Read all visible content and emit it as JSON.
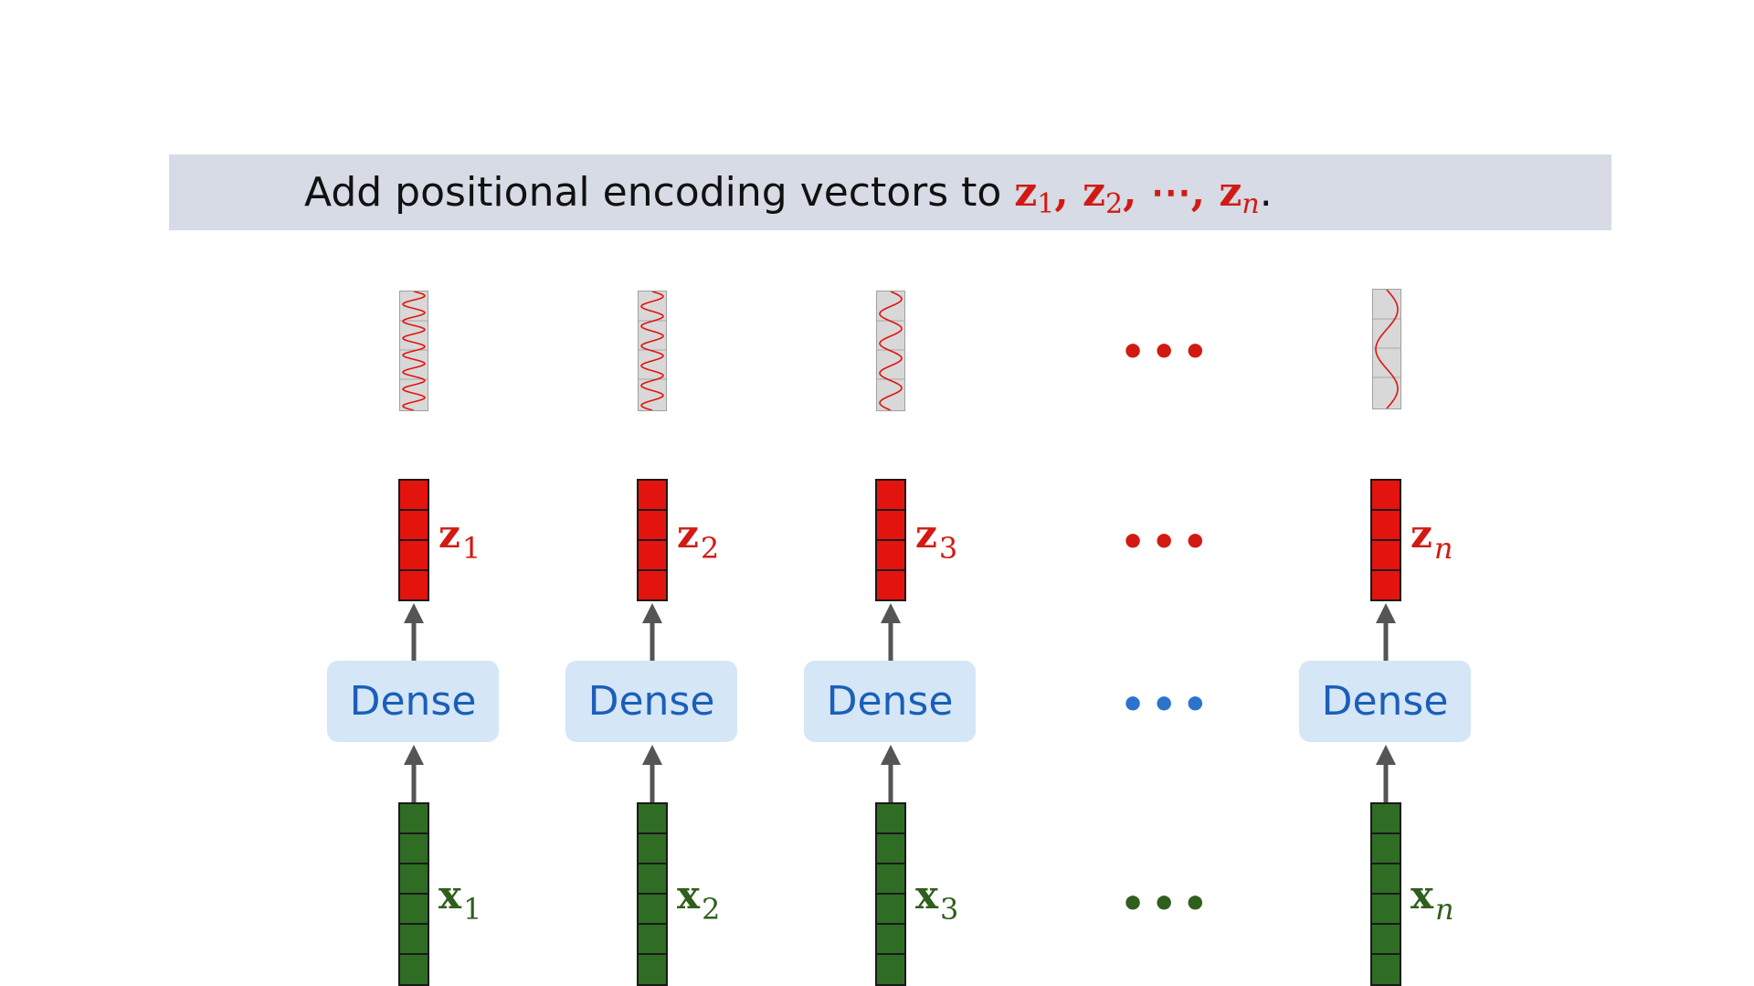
{
  "banner": {
    "text": "Add positional encoding vectors to ",
    "z_symbol": "z",
    "sub1": "1",
    "sub2": "2",
    "subn": "n",
    "ellipsis": "⋯",
    "sep": ", ",
    "period": "."
  },
  "columns": [
    {
      "z_label": "z",
      "z_sub": "1",
      "x_label": "x",
      "x_sub": "1",
      "dense_label": "Dense"
    },
    {
      "z_label": "z",
      "z_sub": "2",
      "x_label": "x",
      "x_sub": "2",
      "dense_label": "Dense"
    },
    {
      "z_label": "z",
      "z_sub": "3",
      "x_label": "x",
      "x_sub": "3",
      "dense_label": "Dense"
    },
    {
      "z_label": "z",
      "z_sub": "n",
      "x_label": "x",
      "x_sub": "n",
      "dense_label": "Dense"
    }
  ],
  "dots": "•••",
  "colors": {
    "z_vector": "#e3130d",
    "x_vector": "#2f6d24",
    "dense_bg": "#d5e6f7",
    "dense_text": "#1b5fb8",
    "banner_bg": "#d6dbe5",
    "sine_wave": "#e3130d"
  }
}
